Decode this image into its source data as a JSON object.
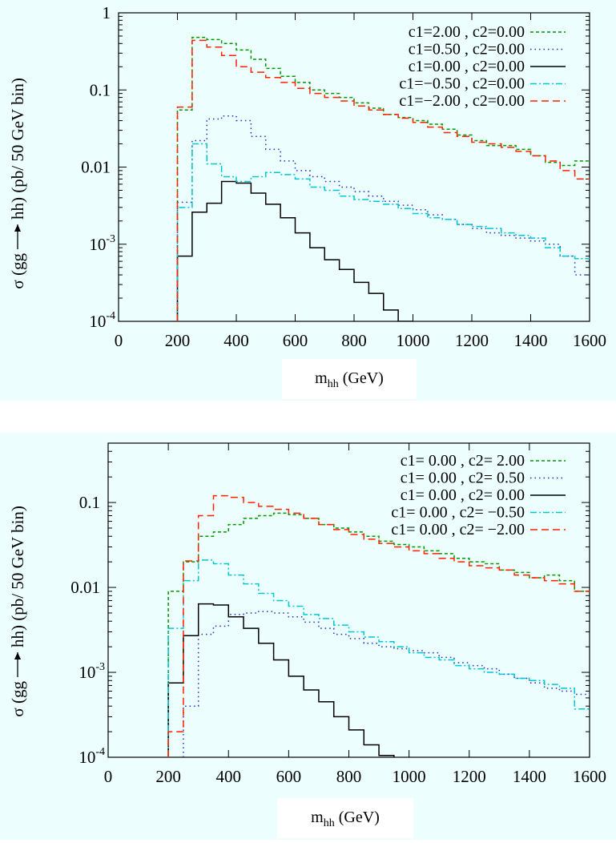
{
  "chart_data": [
    {
      "type": "line",
      "step": true,
      "xlabel": "m_hh (GeV)",
      "xlabel_main": "m",
      "xlabel_sub": "hh",
      "xlabel_unit": "(GeV)",
      "ylabel": "σ (gg → hh) (pb/ 50 GeV bin)",
      "ylabel_pre": "σ (gg",
      "ylabel_post": "hh) (pb/ 50 GeV bin)",
      "xlim": [
        0,
        1600
      ],
      "ylim": [
        0.0001,
        1
      ],
      "yscale": "log",
      "xticks": [
        "0",
        "200",
        "400",
        "600",
        "800",
        "1000",
        "1200",
        "1400",
        "1600"
      ],
      "yticks": [
        {
          "value": 1,
          "label": "1",
          "sup": ""
        },
        {
          "value": 0.1,
          "label": "0.1",
          "sup": ""
        },
        {
          "value": 0.01,
          "label": "0.01",
          "sup": ""
        },
        {
          "value": 0.001,
          "label": "10",
          "sup": "-3"
        },
        {
          "value": 0.0001,
          "label": "10",
          "sup": "-4"
        }
      ],
      "legend_position": "top-right",
      "bin_edges": [
        200,
        250,
        300,
        350,
        400,
        450,
        500,
        550,
        600,
        650,
        700,
        750,
        800,
        850,
        900,
        950,
        1000,
        1050,
        1100,
        1150,
        1200,
        1250,
        1300,
        1350,
        1400,
        1450,
        1500,
        1550,
        1600
      ],
      "series": [
        {
          "name": "c1=2.00 , c2=0.00",
          "color": "#009900",
          "dash": "4,3",
          "values": [
            0.055,
            0.48,
            0.45,
            0.4,
            0.33,
            0.25,
            0.19,
            0.15,
            0.125,
            0.1,
            0.09,
            0.08,
            0.068,
            0.058,
            0.048,
            0.044,
            0.04,
            0.036,
            0.031,
            0.026,
            0.022,
            0.019,
            0.019,
            0.017,
            0.014,
            0.0115,
            0.0105,
            0.012
          ]
        },
        {
          "name": "c1=0.50 , c2=0.00",
          "color": "#1a2fbf",
          "dash": "1.5,4",
          "values": [
            0.0035,
            0.022,
            0.042,
            0.046,
            0.04,
            0.025,
            0.017,
            0.012,
            0.009,
            0.0075,
            0.0065,
            0.0055,
            0.0048,
            0.0042,
            0.0036,
            0.0032,
            0.0028,
            0.0024,
            0.0021,
            0.0018,
            0.0016,
            0.0014,
            0.0013,
            0.0012,
            0.0011,
            0.001,
            0.0007,
            0.0004
          ]
        },
        {
          "name": "c1=0.00 , c2=0.00",
          "color": "#000000",
          "dash": "",
          "values": [
            0.0007,
            0.0026,
            0.0034,
            0.0065,
            0.0062,
            0.0046,
            0.0033,
            0.0022,
            0.0014,
            0.0009,
            0.00063,
            0.00047,
            0.00032,
            0.00023,
            0.00014,
            0.0001,
            null,
            null,
            null,
            null,
            null,
            null,
            null,
            null,
            null,
            null,
            null,
            null
          ]
        },
        {
          "name": "c1=−0.50 , c2=0.00",
          "color": "#00c8d0",
          "dash": "8,3,2,3",
          "values": [
            0.003,
            0.02,
            0.011,
            0.0075,
            0.0065,
            0.0075,
            0.0085,
            0.008,
            0.007,
            0.0055,
            0.005,
            0.0042,
            0.0038,
            0.0036,
            0.0033,
            0.0029,
            0.0025,
            0.0022,
            0.0021,
            0.0018,
            0.0017,
            0.0016,
            0.0014,
            0.0013,
            0.0012,
            0.0009,
            0.0007,
            0.00065
          ]
        },
        {
          "name": "c1=−2.00 , c2=0.00",
          "color": "#ff2200",
          "dash": "9,5",
          "values": [
            0.06,
            0.44,
            0.36,
            0.28,
            0.2,
            0.17,
            0.145,
            0.125,
            0.105,
            0.09,
            0.08,
            0.072,
            0.062,
            0.055,
            0.048,
            0.043,
            0.038,
            0.033,
            0.028,
            0.025,
            0.021,
            0.02,
            0.018,
            0.016,
            0.014,
            0.012,
            0.009,
            0.007
          ]
        }
      ]
    },
    {
      "type": "line",
      "step": true,
      "xlabel": "m_hh (GeV)",
      "xlabel_main": "m",
      "xlabel_sub": "hh",
      "xlabel_unit": "(GeV)",
      "ylabel": "σ (gg → hh) (pb/ 50 GeV bin)",
      "ylabel_pre": "σ (gg",
      "ylabel_post": "hh) (pb/ 50 GeV bin)",
      "xlim": [
        0,
        1600
      ],
      "ylim": [
        0.0001,
        0.5
      ],
      "yscale": "log",
      "xticks": [
        "0",
        "200",
        "400",
        "600",
        "800",
        "1000",
        "1200",
        "1400",
        "1600"
      ],
      "yticks": [
        {
          "value": 0.1,
          "label": "0.1",
          "sup": ""
        },
        {
          "value": 0.01,
          "label": "0.01",
          "sup": ""
        },
        {
          "value": 0.001,
          "label": "10",
          "sup": "-3"
        },
        {
          "value": 0.0001,
          "label": "10",
          "sup": "-4"
        }
      ],
      "legend_position": "top-right",
      "bin_edges": [
        200,
        250,
        300,
        350,
        400,
        450,
        500,
        550,
        600,
        650,
        700,
        750,
        800,
        850,
        900,
        950,
        1000,
        1050,
        1100,
        1150,
        1200,
        1250,
        1300,
        1350,
        1400,
        1450,
        1500,
        1550,
        1600
      ],
      "series": [
        {
          "name": "c1= 0.00 , c2= 2.00",
          "color": "#009900",
          "dash": "4,3",
          "values": [
            0.009,
            0.02,
            0.04,
            0.045,
            0.055,
            0.065,
            0.07,
            0.075,
            0.072,
            0.065,
            0.055,
            0.05,
            0.045,
            0.04,
            0.035,
            0.032,
            0.03,
            0.027,
            0.025,
            0.022,
            0.02,
            0.019,
            0.016,
            0.015,
            0.013,
            0.014,
            0.012,
            0.009
          ]
        },
        {
          "name": "c1= 0.00 , c2= 0.50",
          "color": "#1a2fbf",
          "dash": "1.5,4",
          "values": [
            null,
            0.0004,
            0.0028,
            0.0035,
            0.0048,
            0.005,
            0.0052,
            0.005,
            0.0045,
            0.0039,
            0.0033,
            0.0028,
            0.0025,
            0.0022,
            0.002,
            0.0019,
            0.0018,
            0.0017,
            0.0015,
            0.0013,
            0.0012,
            0.0011,
            0.00095,
            0.00085,
            0.00075,
            0.00065,
            0.0006,
            0.00055
          ]
        },
        {
          "name": "c1= 0.00 , c2= 0.00",
          "color": "#000000",
          "dash": "",
          "values": [
            0.00075,
            0.0027,
            0.0064,
            0.0062,
            0.0045,
            0.0033,
            0.0022,
            0.0014,
            0.0009,
            0.00062,
            0.00045,
            0.0003,
            0.00021,
            0.00014,
            0.000105,
            null,
            null,
            null,
            null,
            null,
            null,
            null,
            null,
            null,
            null,
            null,
            null,
            null
          ]
        },
        {
          "name": "c1= 0.00 , c2= −0.50",
          "color": "#00c8d0",
          "dash": "8,3,2,3",
          "values": [
            0.0033,
            0.012,
            0.021,
            0.019,
            0.014,
            0.011,
            0.0085,
            0.007,
            0.006,
            0.0048,
            0.0043,
            0.0036,
            0.003,
            0.0026,
            0.0023,
            0.002,
            0.0017,
            0.0015,
            0.0014,
            0.0012,
            0.0011,
            0.001,
            0.00095,
            0.00085,
            0.0008,
            0.00072,
            0.00065,
            0.00037
          ]
        },
        {
          "name": "c1= 0.00 , c2= −2.00",
          "color": "#ff2200",
          "dash": "9,5",
          "values": [
            0.0002,
            0.0205,
            0.07,
            0.12,
            0.115,
            0.1,
            0.09,
            0.083,
            0.075,
            0.065,
            0.055,
            0.048,
            0.042,
            0.037,
            0.033,
            0.03,
            0.027,
            0.025,
            0.022,
            0.02,
            0.018,
            0.017,
            0.016,
            0.014,
            0.013,
            0.012,
            0.011,
            0.009
          ]
        }
      ]
    }
  ]
}
